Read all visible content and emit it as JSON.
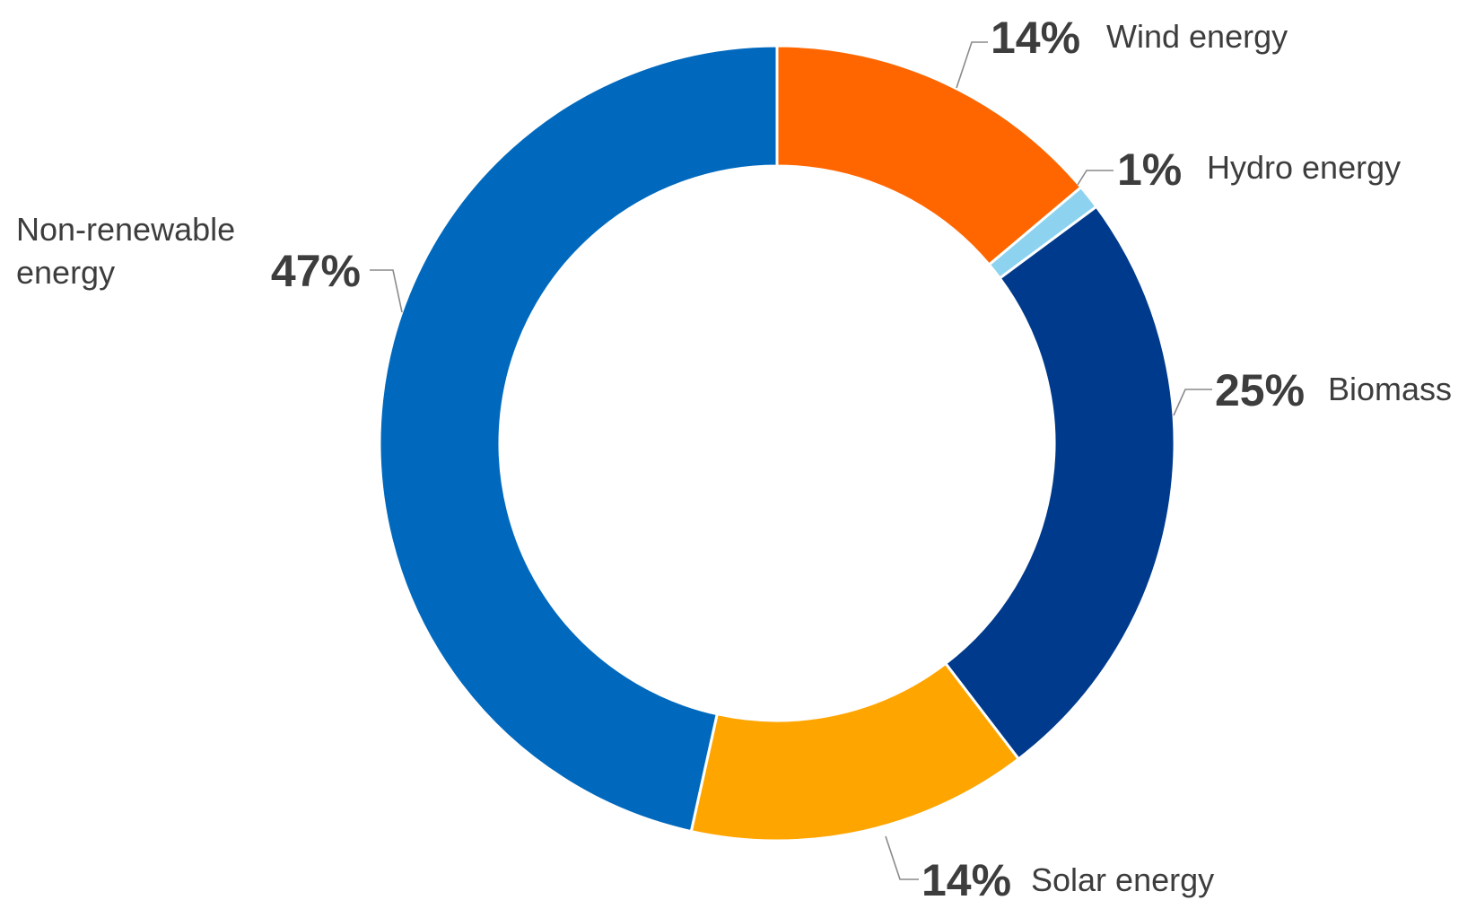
{
  "chart_data": {
    "type": "pie",
    "style": "donut",
    "title": "",
    "slices": [
      {
        "label": "Wind energy",
        "value": 14,
        "display": "14%",
        "color": "#FF6600"
      },
      {
        "label": "Hydro energy",
        "value": 1,
        "display": "1%",
        "color": "#8DD3F0"
      },
      {
        "label": "Biomass",
        "value": 25,
        "display": "25%",
        "color": "#003A8C"
      },
      {
        "label": "Solar energy",
        "value": 14,
        "display": "14%",
        "color": "#FFA500"
      },
      {
        "label": "Non-renewable energy",
        "value": 47,
        "display": "47%",
        "color": "#0069BE",
        "label_lines": [
          "Non-renewable",
          "energy"
        ]
      }
    ],
    "legend": "none",
    "start_angle": "top",
    "direction": "clockwise"
  }
}
